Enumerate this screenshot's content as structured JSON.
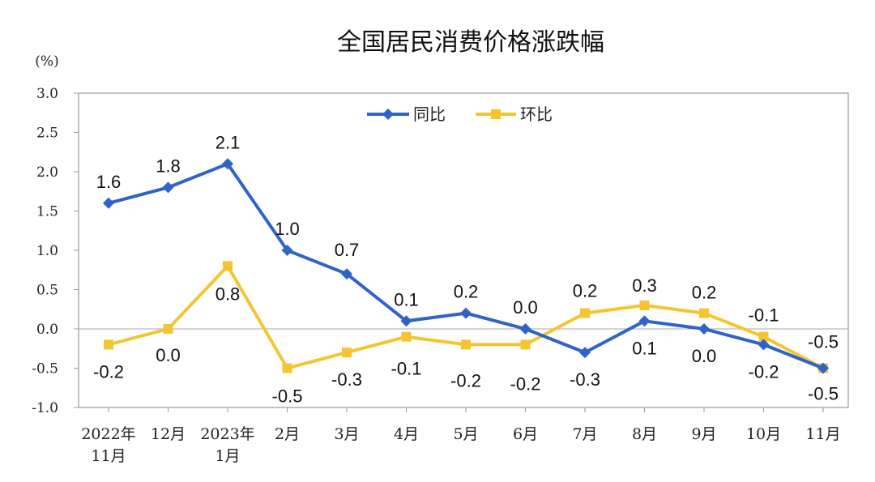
{
  "chart_data": {
    "type": "line",
    "title": "全国居民消费价格涨跌幅",
    "ylabel": "(%)",
    "ylim": [
      -1.0,
      3.0
    ],
    "yticks": [
      "3.0",
      "2.5",
      "2.0",
      "1.5",
      "1.0",
      "0.5",
      "0.0",
      "-0.5",
      "-1.0"
    ],
    "ytick_values": [
      3.0,
      2.5,
      2.0,
      1.5,
      1.0,
      0.5,
      0.0,
      -0.5,
      -1.0
    ],
    "categories": [
      [
        "2022年",
        "11月"
      ],
      [
        "12月"
      ],
      [
        "2023年",
        "1月"
      ],
      [
        "2月"
      ],
      [
        "3月"
      ],
      [
        "4月"
      ],
      [
        "5月"
      ],
      [
        "6月"
      ],
      [
        "7月"
      ],
      [
        "8月"
      ],
      [
        "9月"
      ],
      [
        "10月"
      ],
      [
        "11月"
      ]
    ],
    "legend_position": "top-center",
    "series": [
      {
        "name": "同比",
        "color": "#2f63c9",
        "marker": "diamond",
        "values": [
          1.6,
          1.8,
          2.1,
          1.0,
          0.7,
          0.1,
          0.2,
          0.0,
          -0.3,
          0.1,
          0.0,
          -0.2,
          -0.5
        ],
        "labels": [
          "1.6",
          "1.8",
          "2.1",
          "1.0",
          "0.7",
          "0.1",
          "0.2",
          "0.0",
          "-0.3",
          "0.1",
          "0.0",
          "-0.2",
          "-0.5"
        ]
      },
      {
        "name": "环比",
        "color": "#f5c531",
        "marker": "square",
        "values": [
          -0.2,
          0.0,
          0.8,
          -0.5,
          -0.3,
          -0.1,
          -0.2,
          -0.2,
          0.2,
          0.3,
          0.2,
          -0.1,
          -0.5
        ],
        "labels": [
          "-0.2",
          "0.0",
          "0.8",
          "-0.5",
          "-0.3",
          "-0.1",
          "-0.2",
          "-0.2",
          "0.2",
          "0.3",
          "0.2",
          "-0.1",
          "-0.5"
        ]
      }
    ]
  }
}
